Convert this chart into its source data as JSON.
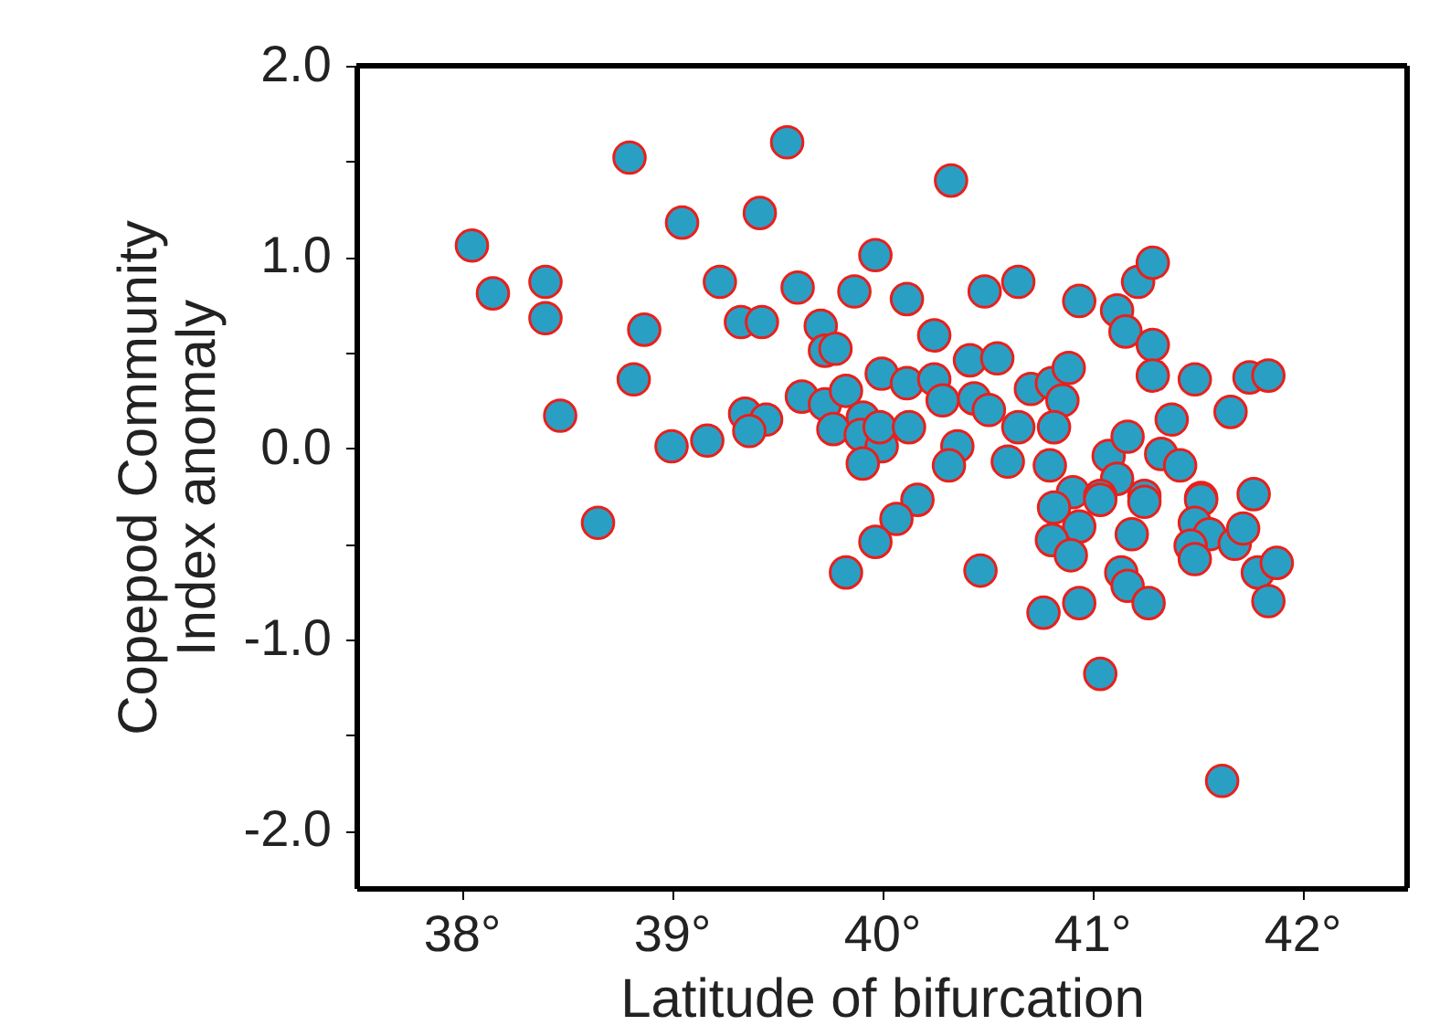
{
  "chart_data": {
    "type": "scatter",
    "xlabel": "Latitude of bifurcation",
    "ylabel": "Copepod Community\nIndex anomaly",
    "marker": "circle",
    "grid": false,
    "xlim": [
      37.5,
      42.5
    ],
    "ylim": [
      -2.3,
      2.0
    ],
    "xticks": [
      {
        "value": 38,
        "label": "38°"
      },
      {
        "value": 39,
        "label": "39°"
      },
      {
        "value": 40,
        "label": "40°"
      },
      {
        "value": 41,
        "label": "41°"
      },
      {
        "value": 42,
        "label": "42°"
      }
    ],
    "yticks": [
      {
        "value": -2,
        "label": "-2.0"
      },
      {
        "value": -1.5,
        "label": null
      },
      {
        "value": -1,
        "label": "-1.0"
      },
      {
        "value": -0.5,
        "label": null
      },
      {
        "value": 0,
        "label": "0.0"
      },
      {
        "value": 0.5,
        "label": null
      },
      {
        "value": 1,
        "label": "1.0"
      },
      {
        "value": 1.5,
        "label": null
      },
      {
        "value": 2,
        "label": "2.0"
      }
    ],
    "series": [
      {
        "color": "#2a9fc4",
        "x": [
          38.05,
          38.15,
          38.4,
          38.4,
          38.47,
          38.8,
          38.82,
          38.87,
          39.0,
          39.17,
          39.05,
          39.23,
          39.42,
          39.33,
          39.43,
          39.35,
          39.45,
          39.37,
          39.55,
          39.6,
          39.87,
          39.97,
          39.71,
          39.73,
          39.78,
          39.62,
          39.73,
          39.83,
          40.0,
          39.91,
          39.77,
          39.9,
          40.0,
          39.91,
          40.33,
          40.12,
          40.49,
          40.65,
          40.25,
          40.94,
          41.12,
          41.16,
          41.22,
          41.29,
          41.29,
          41.29,
          41.49,
          41.75,
          41.84,
          41.66,
          41.38,
          40.12,
          40.25,
          40.29,
          40.42,
          40.55,
          40.44,
          40.51,
          40.71,
          40.81,
          40.89,
          40.86,
          39.99,
          40.13,
          40.65,
          40.82,
          40.36,
          40.32,
          40.6,
          40.8,
          41.08,
          41.17,
          41.33,
          41.42,
          41.12,
          40.17,
          40.91,
          41.04,
          41.25,
          41.52,
          41.77,
          40.07,
          39.97,
          40.47,
          40.82,
          40.94,
          40.81,
          40.9,
          41.04,
          41.25,
          41.19,
          41.14,
          41.17,
          41.27,
          40.94,
          40.77,
          41.04,
          41.52,
          41.49,
          41.56,
          41.47,
          41.49,
          41.68,
          41.72,
          41.79,
          41.88,
          41.84,
          41.62,
          38.65,
          39.83
        ],
        "values": [
          1.06,
          0.81,
          0.87,
          0.68,
          0.17,
          1.52,
          0.36,
          0.62,
          0.01,
          0.04,
          1.18,
          0.87,
          1.23,
          0.66,
          0.66,
          0.18,
          0.15,
          0.09,
          1.6,
          0.84,
          0.82,
          1.01,
          0.64,
          0.51,
          0.52,
          0.27,
          0.23,
          0.3,
          0.39,
          0.16,
          0.1,
          0.07,
          0.01,
          -0.08,
          1.4,
          0.78,
          0.82,
          0.87,
          0.59,
          0.77,
          0.72,
          0.61,
          0.87,
          0.97,
          0.54,
          0.38,
          0.36,
          0.37,
          0.38,
          0.19,
          0.15,
          0.34,
          0.36,
          0.25,
          0.46,
          0.47,
          0.26,
          0.2,
          0.31,
          0.34,
          0.42,
          0.25,
          0.11,
          0.11,
          0.11,
          0.11,
          0.01,
          -0.09,
          -0.07,
          -0.09,
          -0.04,
          0.06,
          -0.03,
          -0.09,
          -0.16,
          -0.27,
          -0.23,
          -0.25,
          -0.25,
          -0.26,
          -0.24,
          -0.37,
          -0.49,
          -0.64,
          -0.31,
          -0.41,
          -0.48,
          -0.56,
          -0.27,
          -0.28,
          -0.45,
          -0.65,
          -0.72,
          -0.81,
          -0.81,
          -0.86,
          -1.18,
          -0.27,
          -0.39,
          -0.45,
          -0.51,
          -0.58,
          -0.5,
          -0.42,
          -0.65,
          -0.6,
          -0.8,
          -1.74,
          -0.39,
          -0.65
        ]
      }
    ]
  }
}
